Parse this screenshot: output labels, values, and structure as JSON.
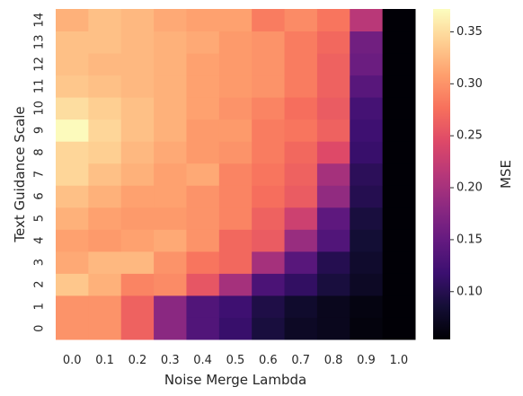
{
  "chart_data": {
    "type": "heatmap",
    "xlabel": "Noise Merge Lambda",
    "ylabel": "Text Guidance Scale",
    "colorbar_label": "MSE",
    "colormap": "magma",
    "x": [
      "0.0",
      "0.1",
      "0.2",
      "0.3",
      "0.4",
      "0.5",
      "0.6",
      "0.7",
      "0.8",
      "0.9",
      "1.0"
    ],
    "y": [
      "0",
      "1",
      "2",
      "3",
      "4",
      "5",
      "6",
      "7",
      "8",
      "9",
      "10",
      "11",
      "12",
      "13",
      "14"
    ],
    "colorbar_ticks": [
      0.1,
      0.15,
      0.2,
      0.25,
      0.3,
      0.35
    ],
    "colorbar_tick_labels": [
      "0.10",
      "0.15",
      "0.20",
      "0.25",
      "0.30",
      "0.35"
    ],
    "vmin": 0.054,
    "vmax": 0.372,
    "values": [
      [
        0.3,
        0.3,
        0.265,
        0.18,
        0.135,
        0.115,
        0.09,
        0.075,
        0.07,
        0.06,
        0.055
      ],
      [
        0.3,
        0.3,
        0.265,
        0.18,
        0.135,
        0.12,
        0.095,
        0.08,
        0.07,
        0.062,
        0.055
      ],
      [
        0.335,
        0.32,
        0.29,
        0.295,
        0.255,
        0.2,
        0.13,
        0.11,
        0.09,
        0.075,
        0.055
      ],
      [
        0.315,
        0.325,
        0.325,
        0.3,
        0.28,
        0.27,
        0.2,
        0.14,
        0.1,
        0.08,
        0.055
      ],
      [
        0.31,
        0.305,
        0.31,
        0.315,
        0.3,
        0.27,
        0.26,
        0.19,
        0.135,
        0.085,
        0.055
      ],
      [
        0.32,
        0.31,
        0.305,
        0.305,
        0.3,
        0.29,
        0.265,
        0.23,
        0.145,
        0.09,
        0.055
      ],
      [
        0.33,
        0.32,
        0.31,
        0.31,
        0.3,
        0.29,
        0.275,
        0.26,
        0.185,
        0.1,
        0.055
      ],
      [
        0.345,
        0.33,
        0.32,
        0.31,
        0.315,
        0.29,
        0.28,
        0.265,
        0.2,
        0.105,
        0.055
      ],
      [
        0.345,
        0.34,
        0.325,
        0.315,
        0.305,
        0.3,
        0.285,
        0.27,
        0.245,
        0.115,
        0.055
      ],
      [
        0.37,
        0.345,
        0.33,
        0.32,
        0.305,
        0.305,
        0.285,
        0.28,
        0.265,
        0.12,
        0.055
      ],
      [
        0.35,
        0.34,
        0.33,
        0.32,
        0.31,
        0.3,
        0.29,
        0.275,
        0.26,
        0.125,
        0.055
      ],
      [
        0.335,
        0.33,
        0.325,
        0.32,
        0.31,
        0.305,
        0.3,
        0.285,
        0.265,
        0.14,
        0.055
      ],
      [
        0.33,
        0.325,
        0.325,
        0.32,
        0.31,
        0.305,
        0.3,
        0.285,
        0.265,
        0.155,
        0.055
      ],
      [
        0.33,
        0.33,
        0.325,
        0.32,
        0.315,
        0.305,
        0.3,
        0.285,
        0.27,
        0.16,
        0.055
      ],
      [
        0.32,
        0.33,
        0.325,
        0.315,
        0.31,
        0.31,
        0.285,
        0.295,
        0.28,
        0.215,
        0.055
      ]
    ]
  }
}
